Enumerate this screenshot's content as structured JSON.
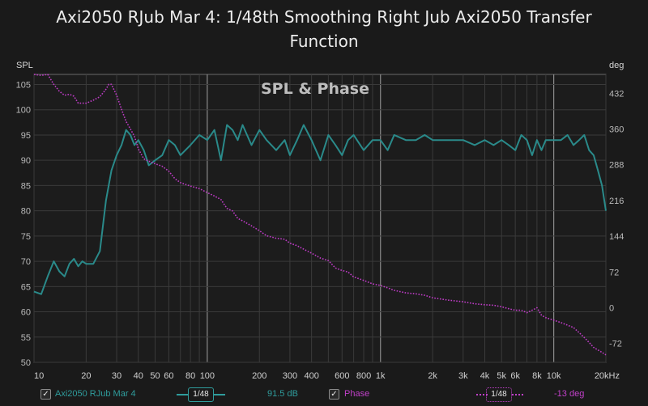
{
  "title_line1": "Axi2050 RJub Mar 4: 1/48th Smoothing Right Jub Axi2050 Transfer",
  "title_line2": "Function",
  "overlay_label": "SPL & Phase",
  "colors": {
    "background": "#1a1a1a",
    "spl": "#2a8a8a",
    "phase": "#c03cc8",
    "grid": "#3a3a3a",
    "grid_major": "#8a8a8a"
  },
  "legend": {
    "spl_name": "Axi2050 RJub  Mar 4",
    "spl_smoothing": "1/48",
    "spl_value": "91.5 dB",
    "phase_name": "Phase",
    "phase_smoothing": "1/48",
    "phase_value": "-13 deg"
  },
  "chart_data": {
    "type": "line",
    "title": "Axi2050 RJub Mar 4: 1/48th Smoothing Right Jub Axi2050 Transfer Function",
    "xlabel": "",
    "x_unit": "kHz",
    "x_scale": "log",
    "xlim": [
      10,
      20000
    ],
    "x_ticks": [
      10,
      20,
      30,
      40,
      50,
      60,
      80,
      100,
      200,
      300,
      400,
      600,
      800,
      1000,
      2000,
      3000,
      4000,
      5000,
      6000,
      8000,
      10000,
      20000
    ],
    "x_tick_labels": [
      "10",
      "20",
      "30",
      "40",
      "50",
      "60",
      "80",
      "100",
      "200",
      "300",
      "400",
      "600",
      "800",
      "1k",
      "2k",
      "3k",
      "4k",
      "5k",
      "6k",
      "8k",
      "10k",
      "20kHz"
    ],
    "y_left": {
      "label": "SPL",
      "lim": [
        50,
        107
      ],
      "ticks": [
        50,
        55,
        60,
        65,
        70,
        75,
        80,
        85,
        90,
        95,
        100,
        105
      ]
    },
    "y_right": {
      "label": "deg",
      "lim": [
        -110,
        470
      ],
      "ticks": [
        -72,
        0,
        72,
        144,
        216,
        288,
        360,
        432
      ]
    },
    "grid": true,
    "series": [
      {
        "name": "Axi2050 RJub  Mar 4",
        "axis": "left",
        "style": "solid",
        "x": [
          10,
          11,
          12,
          13,
          14,
          15,
          16,
          17,
          18,
          19,
          20,
          22,
          24,
          26,
          28,
          30,
          32,
          34,
          36,
          38,
          40,
          43,
          46,
          50,
          55,
          60,
          65,
          70,
          80,
          90,
          100,
          110,
          120,
          130,
          140,
          150,
          160,
          180,
          200,
          220,
          250,
          280,
          300,
          330,
          360,
          400,
          450,
          500,
          550,
          600,
          650,
          700,
          800,
          900,
          1000,
          1100,
          1200,
          1400,
          1600,
          1800,
          2000,
          2500,
          3000,
          3500,
          4000,
          4500,
          5000,
          5500,
          6000,
          6500,
          7000,
          7500,
          8000,
          8500,
          9000,
          10000,
          11000,
          12000,
          13000,
          14000,
          15000,
          16000,
          17000,
          18000,
          19000,
          20000
        ],
        "y": [
          64,
          63.5,
          67,
          70,
          68,
          67,
          69.5,
          70.5,
          69,
          70,
          69.5,
          69.5,
          72,
          82,
          88,
          91,
          93,
          96,
          95,
          93,
          94,
          92,
          89,
          90,
          91,
          94,
          93,
          91,
          93,
          95,
          94,
          96,
          90,
          97,
          96,
          94,
          97,
          93,
          96,
          94,
          92,
          94,
          91,
          94,
          97,
          94,
          90,
          95,
          93,
          91,
          94,
          95,
          92,
          94,
          94,
          92,
          95,
          94,
          94,
          95,
          94,
          94,
          94,
          93,
          94,
          93,
          94,
          93,
          92,
          95,
          94,
          91,
          94,
          92,
          94,
          94,
          94,
          95,
          93,
          94,
          95,
          92,
          91,
          88,
          85,
          80
        ]
      },
      {
        "name": "Phase",
        "axis": "right",
        "style": "dotted",
        "x": [
          10,
          11,
          12,
          13,
          14,
          15,
          16,
          17,
          18,
          19,
          20,
          22,
          24,
          26,
          27,
          28,
          30,
          32,
          34,
          36,
          38,
          40,
          43,
          46,
          50,
          55,
          60,
          65,
          70,
          80,
          90,
          100,
          110,
          120,
          130,
          140,
          150,
          160,
          180,
          200,
          220,
          250,
          280,
          300,
          330,
          360,
          400,
          450,
          500,
          550,
          600,
          650,
          700,
          800,
          900,
          1000,
          1100,
          1200,
          1400,
          1600,
          1800,
          2000,
          2500,
          3000,
          3500,
          4000,
          4500,
          5000,
          5500,
          6000,
          6500,
          7000,
          7500,
          8000,
          8500,
          9000,
          10000,
          11000,
          12000,
          13000,
          14000,
          15000,
          16000,
          17000,
          18000,
          19000,
          20000
        ],
        "y": [
          470,
          468,
          470,
          450,
          436,
          428,
          430,
          426,
          412,
          412,
          412,
          418,
          425,
          440,
          450,
          450,
          428,
          400,
          375,
          360,
          345,
          320,
          300,
          295,
          290,
          285,
          275,
          260,
          252,
          245,
          240,
          232,
          225,
          218,
          200,
          195,
          180,
          175,
          165,
          155,
          145,
          140,
          138,
          130,
          125,
          118,
          110,
          100,
          95,
          80,
          75,
          72,
          62,
          55,
          48,
          45,
          40,
          35,
          30,
          28,
          25,
          20,
          15,
          12,
          8,
          6,
          5,
          2,
          -2,
          -5,
          -5,
          -10,
          -5,
          0,
          -15,
          -20,
          -25,
          -30,
          -35,
          -40,
          -50,
          -60,
          -70,
          -80,
          -85,
          -90,
          -95
        ]
      }
    ]
  }
}
